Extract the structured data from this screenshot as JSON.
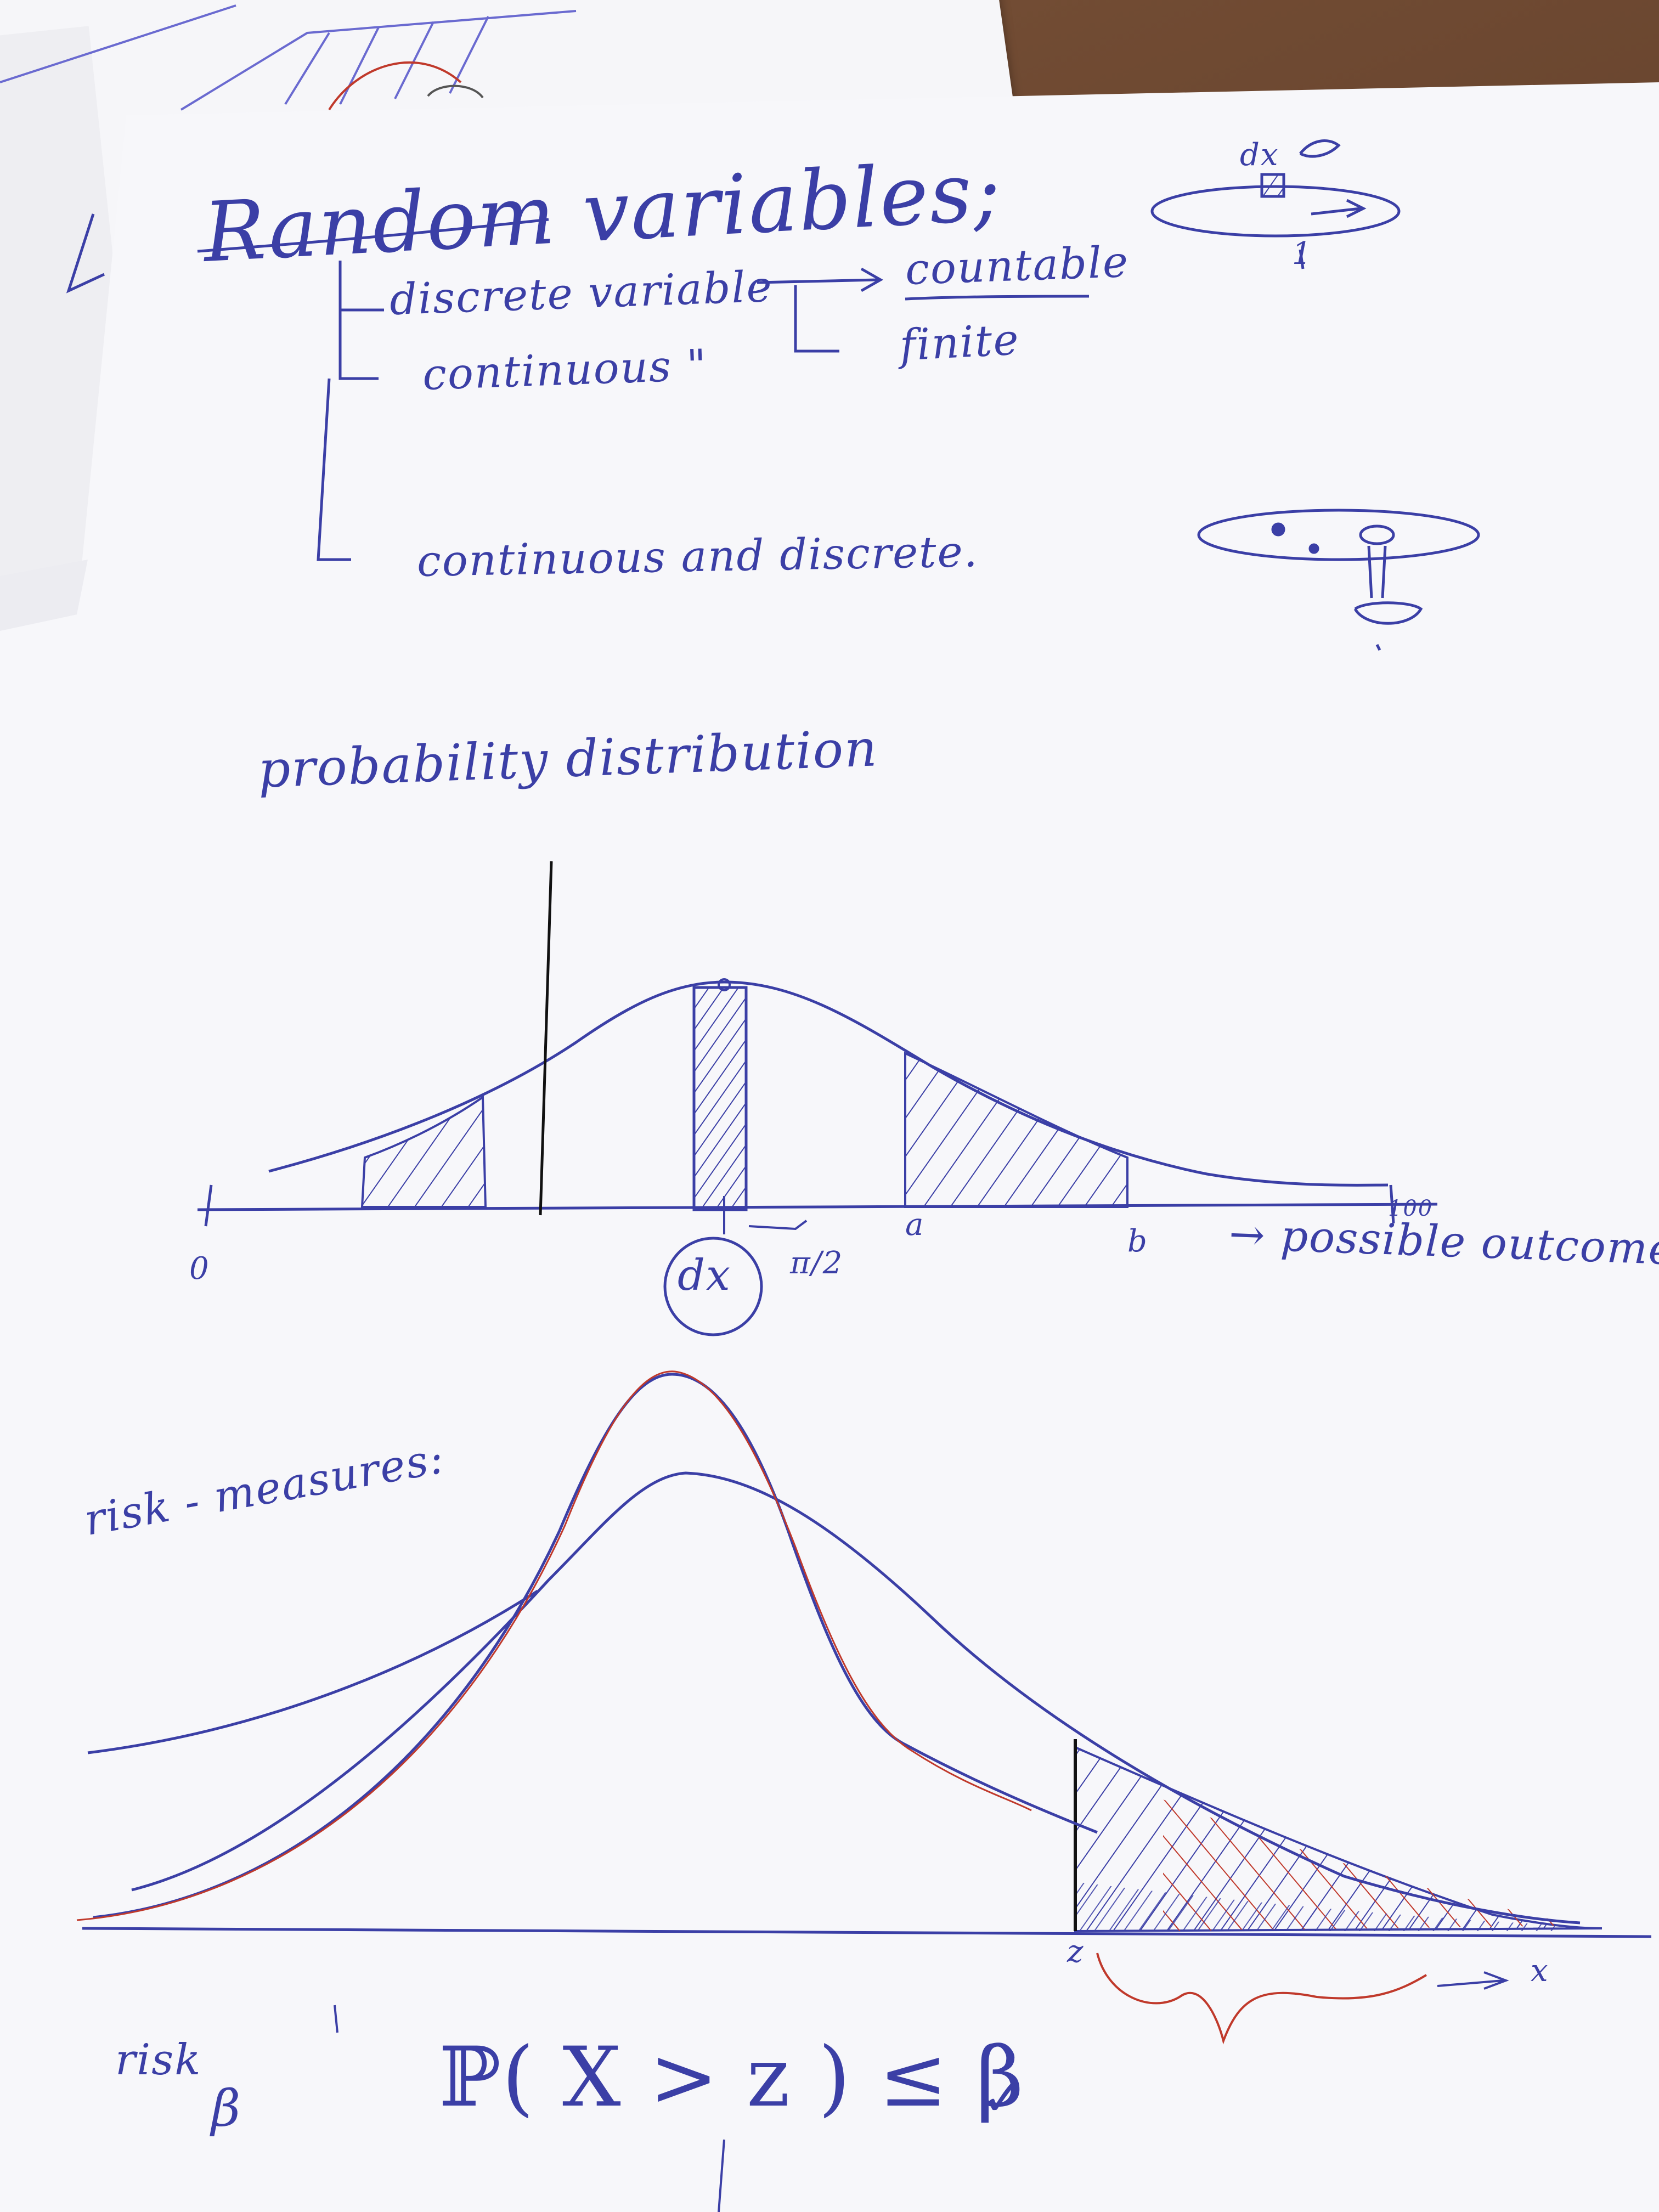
{
  "notes": {
    "title": "Random variables;",
    "tree": {
      "discrete": "discrete variable",
      "continuous": "continuous \"",
      "mixed": "continuous and discrete.",
      "countable": "countable",
      "finite": "finite"
    },
    "sketch_dx_label": "dx",
    "sketch_dx_sublabel": "1",
    "section_distribution": "probability distribution",
    "axis": {
      "zero": "0",
      "a": "a",
      "b": "b",
      "dx": "dx",
      "pi_half": "π/2",
      "outcomes": "→ possible outcomes",
      "hundred": "100"
    },
    "section_risk": "risk - measures:",
    "tail": {
      "z": "z",
      "x": "x"
    },
    "risk_label": "risk",
    "beta": "β",
    "formula": "ℙ( X > z ) ≤ β",
    "check": "✓"
  },
  "ink_colors": {
    "blue": "#3b3fa6",
    "red": "#c0392b",
    "paper": "#f7f7fa"
  }
}
